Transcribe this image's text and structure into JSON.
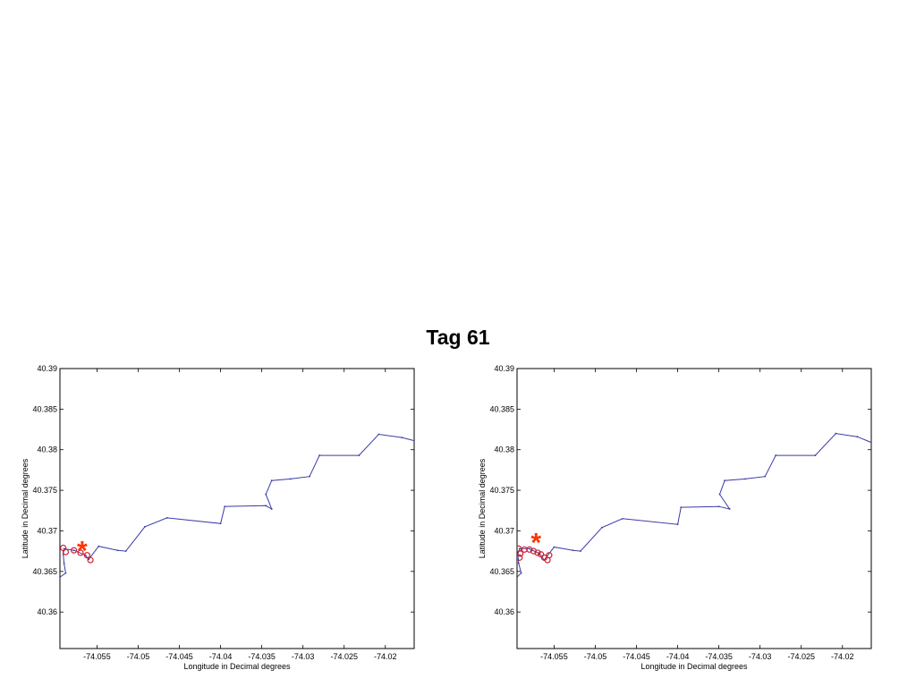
{
  "title": "Tag 61",
  "colors": {
    "track": "#3a3aa8",
    "highlight": "#cc2233",
    "star": "#ff3300",
    "axis": "#000000"
  },
  "chart_data": [
    {
      "type": "line",
      "xlabel": "Longitude in Decimal degrees",
      "ylabel": "Latitude in Decimal degrees",
      "xlim": [
        -74.0595,
        -74.0165
      ],
      "ylim": [
        40.3555,
        40.39
      ],
      "xticks": [
        -74.055,
        -74.05,
        -74.045,
        -74.04,
        -74.035,
        -74.03,
        -74.025,
        -74.02
      ],
      "xtick_labels": [
        "-74.055",
        "-74.05",
        "-74.045",
        "-74.04",
        "-74.035",
        "-74.03",
        "-74.025",
        "-74.02"
      ],
      "yticks": [
        40.36,
        40.365,
        40.37,
        40.375,
        40.38,
        40.385,
        40.39
      ],
      "ytick_labels": [
        "40.36",
        "40.365",
        "40.37",
        "40.375",
        "40.38",
        "40.385",
        "40.39"
      ],
      "grid": false,
      "series": [
        {
          "x": [
            -74.0595,
            -74.0588,
            -74.059,
            -74.0591,
            -74.059,
            -74.0578,
            -74.0564,
            -74.056,
            -74.0548,
            -74.0525,
            -74.0515,
            -74.0492,
            -74.0465,
            -74.04,
            -74.0395,
            -74.0345,
            -74.0338,
            -74.0345,
            -74.0338,
            -74.0315,
            -74.0292,
            -74.028,
            -74.0232,
            -74.0208,
            -74.018,
            -74.0165
          ],
          "y": [
            40.3643,
            40.3648,
            40.366,
            40.3671,
            40.3678,
            40.3676,
            40.367,
            40.3665,
            40.3681,
            40.3676,
            40.3675,
            40.3705,
            40.3716,
            40.3709,
            40.373,
            40.3731,
            40.3727,
            40.3745,
            40.3762,
            40.3764,
            40.3767,
            40.3793,
            40.3793,
            40.3819,
            40.3815,
            40.3811
          ]
        }
      ],
      "highlight_points": {
        "x": [
          -74.0591,
          -74.0588,
          -74.0578,
          -74.057,
          -74.0562,
          -74.0558
        ],
        "y": [
          40.3679,
          40.3674,
          40.3676,
          40.3673,
          40.367,
          40.3664
        ]
      },
      "star": {
        "x": -74.0568,
        "y": 40.3678
      }
    },
    {
      "type": "line",
      "xlabel": "Longitude in Decimal degrees",
      "ylabel": "Latitude in Decimal degrees",
      "xlim": [
        -74.0595,
        -74.0165
      ],
      "ylim": [
        40.3555,
        40.39
      ],
      "xticks": [
        -74.055,
        -74.05,
        -74.045,
        -74.04,
        -74.035,
        -74.03,
        -74.025,
        -74.02
      ],
      "xtick_labels": [
        "-74.055",
        "-74.05",
        "-74.045",
        "-74.04",
        "-74.035",
        "-74.03",
        "-74.025",
        "-74.02"
      ],
      "yticks": [
        40.36,
        40.365,
        40.37,
        40.375,
        40.38,
        40.385,
        40.39
      ],
      "ytick_labels": [
        "40.36",
        "40.365",
        "40.37",
        "40.375",
        "40.38",
        "40.385",
        "40.39"
      ],
      "grid": false,
      "series": [
        {
          "x": [
            -74.0595,
            -74.059,
            -74.0593,
            -74.0594,
            -74.0592,
            -74.058,
            -74.0568,
            -74.0562,
            -74.055,
            -74.0527,
            -74.0518,
            -74.0492,
            -74.0467,
            -74.04,
            -74.0396,
            -74.035,
            -74.0337,
            -74.0349,
            -74.0343,
            -74.0318,
            -74.0294,
            -74.0281,
            -74.0233,
            -74.0208,
            -74.0182,
            -74.0165
          ],
          "y": [
            40.3643,
            40.3648,
            40.366,
            40.3671,
            40.3678,
            40.3678,
            40.3672,
            40.3664,
            40.368,
            40.3676,
            40.3675,
            40.3704,
            40.3715,
            40.3708,
            40.3729,
            40.373,
            40.3727,
            40.3745,
            40.3762,
            40.3764,
            40.3767,
            40.3793,
            40.3793,
            40.382,
            40.3816,
            40.3809
          ]
        }
      ],
      "highlight_points": {
        "x": [
          -74.0593,
          -74.0591,
          -74.0586,
          -74.058,
          -74.0575,
          -74.057,
          -74.0566,
          -74.0562,
          -74.0558,
          -74.0556,
          -74.0592
        ],
        "y": [
          40.3678,
          40.3672,
          40.3677,
          40.3677,
          40.3675,
          40.3673,
          40.3671,
          40.3667,
          40.3664,
          40.367,
          40.3667
        ]
      },
      "star": {
        "x": -74.0572,
        "y": 40.3688
      }
    }
  ]
}
